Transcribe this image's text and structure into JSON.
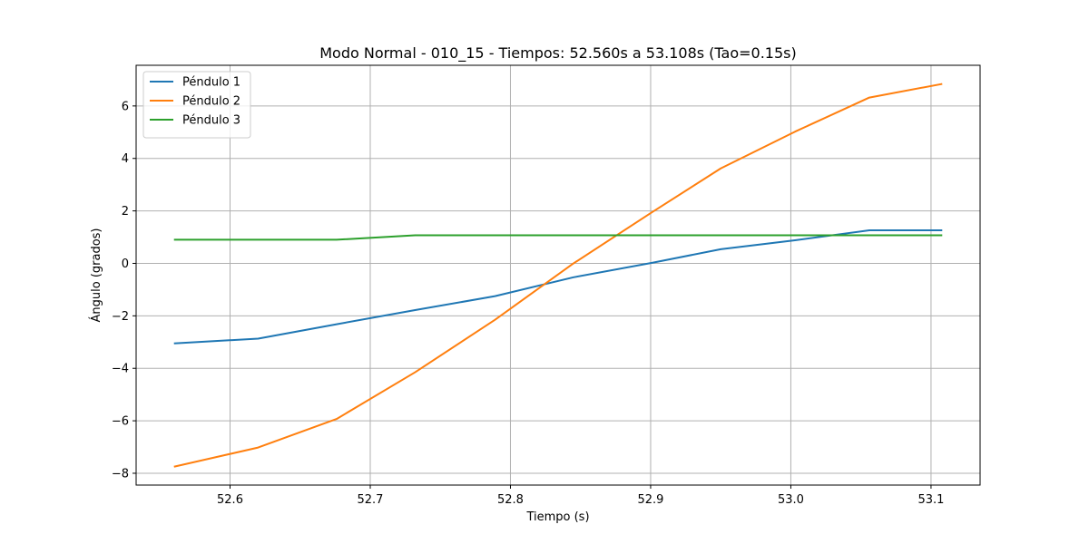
{
  "chart_data": {
    "type": "line",
    "title": "Modo Normal - 010_15 - Tiempos: 52.560s a 53.108s (Tao=0.15s)",
    "xlabel": "Tiempo (s)",
    "ylabel": "Ángulo (grados)",
    "xlim": [
      52.533,
      53.135
    ],
    "ylim": [
      -8.45,
      7.55
    ],
    "x_ticks": [
      52.6,
      52.7,
      52.8,
      52.9,
      53.0,
      53.1
    ],
    "x_tick_labels": [
      "52.6",
      "52.7",
      "52.8",
      "52.9",
      "53.0",
      "53.1"
    ],
    "y_ticks": [
      -8,
      -6,
      -4,
      -2,
      0,
      2,
      4,
      6
    ],
    "y_tick_labels": [
      "−8",
      "−6",
      "−4",
      "−2",
      "0",
      "2",
      "4",
      "6"
    ],
    "grid": true,
    "legend_position": "upper-left",
    "series": [
      {
        "name": "Péndulo 1",
        "color": "#1f77b4",
        "x": [
          52.56,
          52.62,
          52.676,
          52.732,
          52.789,
          52.845,
          52.901,
          52.95,
          53.003,
          53.056,
          53.108
        ],
        "y": [
          -3.05,
          -2.87,
          -2.32,
          -1.78,
          -1.25,
          -0.53,
          0.02,
          0.54,
          0.88,
          1.26,
          1.26
        ]
      },
      {
        "name": "Péndulo 2",
        "color": "#ff7f0e",
        "x": [
          52.56,
          52.62,
          52.676,
          52.732,
          52.789,
          52.845,
          52.901,
          52.95,
          53.003,
          53.056,
          53.108
        ],
        "y": [
          -7.75,
          -7.02,
          -5.93,
          -4.15,
          -2.15,
          0.0,
          1.95,
          3.62,
          5.02,
          6.32,
          6.84
        ]
      },
      {
        "name": "Péndulo 3",
        "color": "#2ca02c",
        "x": [
          52.56,
          52.62,
          52.676,
          52.732,
          52.789,
          52.845,
          52.901,
          52.95,
          53.003,
          53.056,
          53.108
        ],
        "y": [
          0.9,
          0.9,
          0.9,
          1.07,
          1.07,
          1.07,
          1.07,
          1.07,
          1.07,
          1.07,
          1.07
        ]
      }
    ]
  }
}
